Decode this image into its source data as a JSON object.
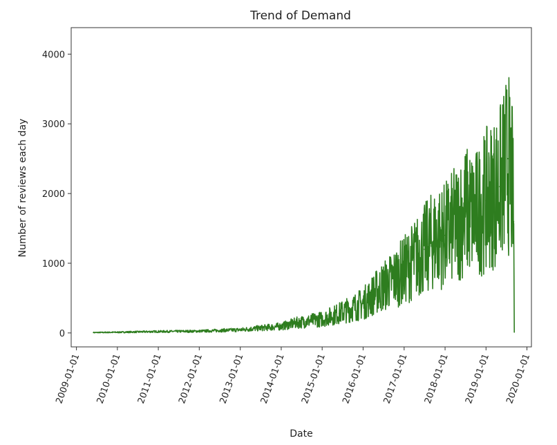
{
  "chart_data": {
    "type": "line",
    "title": "Trend of Demand",
    "xlabel": "Date",
    "ylabel": "Number of reviews each day",
    "x_ticks": [
      "2009-01-01",
      "2010-01-01",
      "2011-01-01",
      "2012-01-01",
      "2013-01-01",
      "2014-01-01",
      "2015-01-01",
      "2016-01-01",
      "2017-01-01",
      "2018-01-01",
      "2019-01-01",
      "2020-01-01"
    ],
    "y_ticks": [
      0,
      1000,
      2000,
      3000,
      4000
    ],
    "xlim": [
      "2008-11-15",
      "2020-02-10"
    ],
    "ylim": [
      -200,
      4380
    ],
    "grid": false,
    "line_color": "#2e7d1f",
    "series": [
      {
        "x": [
          "2009-06-01",
          "2010-01-01",
          "2011-01-01",
          "2012-01-01",
          "2012-07-01",
          "2013-01-01",
          "2013-07-01",
          "2014-01-01",
          "2014-06-01",
          "2015-01-01",
          "2015-06-01",
          "2015-10-01",
          "2016-01-01",
          "2016-04-01",
          "2016-07-01",
          "2016-10-01",
          "2017-01-01",
          "2017-04-01",
          "2017-07-01",
          "2017-10-01",
          "2018-01-01",
          "2018-04-01",
          "2018-07-01",
          "2018-10-01",
          "2019-01-01",
          "2019-03-01",
          "2019-05-01",
          "2019-06-15",
          "2019-07-15",
          "2019-08-10",
          "2019-08-25",
          "2019-09-05",
          "2019-09-10"
        ],
        "y": [
          5,
          10,
          20,
          25,
          35,
          45,
          70,
          95,
          150,
          200,
          280,
          360,
          420,
          550,
          670,
          780,
          900,
          1050,
          1200,
          1350,
          1400,
          1550,
          1750,
          1700,
          1900,
          2000,
          2100,
          2300,
          2500,
          2200,
          2100,
          1600,
          10
        ]
      }
    ]
  }
}
